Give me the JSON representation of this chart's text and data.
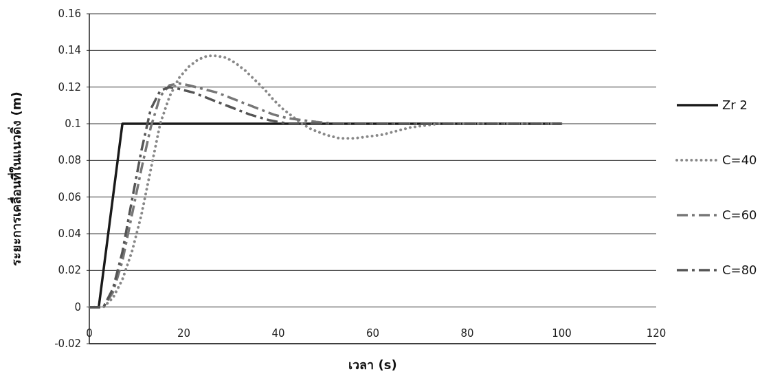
{
  "chart_data": {
    "type": "line",
    "xlabel": "เวลา (s)",
    "ylabel": "ระยะการเคลื่อนที่ในแนวดิ่ง (m)",
    "xlim": [
      0,
      120
    ],
    "xticks": [
      0,
      20,
      40,
      60,
      80,
      100,
      120
    ],
    "ylim": [
      -0.02,
      0.16
    ],
    "yticks": [
      -0.02,
      0,
      0.02,
      0.04,
      0.06,
      0.08,
      0.1,
      0.12,
      0.14,
      0.16
    ],
    "grid": "y",
    "legend": "right",
    "series": [
      {
        "name": "Zr 2",
        "color": "#1a1a1a",
        "line_style": "solid",
        "x": [
          0,
          2,
          7,
          100
        ],
        "values": [
          0,
          0,
          0.1,
          0.1
        ]
      },
      {
        "name": "C=40",
        "color": "#888888",
        "line_style": "dotted",
        "x": [
          0,
          3,
          5,
          7,
          9,
          11,
          13,
          15,
          17,
          19,
          21,
          23,
          25,
          27,
          29,
          31,
          33,
          35,
          37,
          39,
          41,
          43,
          45,
          47,
          50,
          53,
          56,
          59,
          62,
          65,
          68,
          71,
          74,
          80,
          90,
          100
        ],
        "values": [
          0,
          0,
          0.005,
          0.015,
          0.03,
          0.05,
          0.075,
          0.1,
          0.115,
          0.125,
          0.131,
          0.135,
          0.137,
          0.137,
          0.136,
          0.133,
          0.129,
          0.124,
          0.119,
          0.113,
          0.108,
          0.104,
          0.1,
          0.097,
          0.094,
          0.092,
          0.092,
          0.093,
          0.094,
          0.096,
          0.098,
          0.099,
          0.1,
          0.1,
          0.1,
          0.1
        ]
      },
      {
        "name": "C=60",
        "color": "#777777",
        "line_style": "dashed",
        "x": [
          0,
          3,
          5,
          7,
          9,
          11,
          13,
          15,
          17,
          19,
          21,
          24,
          27,
          30,
          33,
          36,
          39,
          42,
          45,
          48,
          52,
          56,
          60,
          70,
          80,
          100
        ],
        "values": [
          0,
          0,
          0.008,
          0.025,
          0.05,
          0.075,
          0.098,
          0.115,
          0.121,
          0.122,
          0.121,
          0.119,
          0.117,
          0.114,
          0.111,
          0.108,
          0.105,
          0.103,
          0.102,
          0.101,
          0.1,
          0.1,
          0.1,
          0.1,
          0.1,
          0.1
        ]
      },
      {
        "name": "C=80",
        "color": "#555555",
        "line_style": "dashed",
        "x": [
          0,
          3,
          5,
          7,
          9,
          11,
          13,
          15,
          17,
          19,
          22,
          26,
          30,
          34,
          38,
          42,
          46,
          50,
          60,
          80,
          100
        ],
        "values": [
          0,
          0,
          0.01,
          0.03,
          0.058,
          0.085,
          0.108,
          0.118,
          0.12,
          0.119,
          0.117,
          0.113,
          0.109,
          0.105,
          0.102,
          0.1,
          0.1,
          0.1,
          0.1,
          0.1,
          0.1
        ]
      }
    ]
  }
}
